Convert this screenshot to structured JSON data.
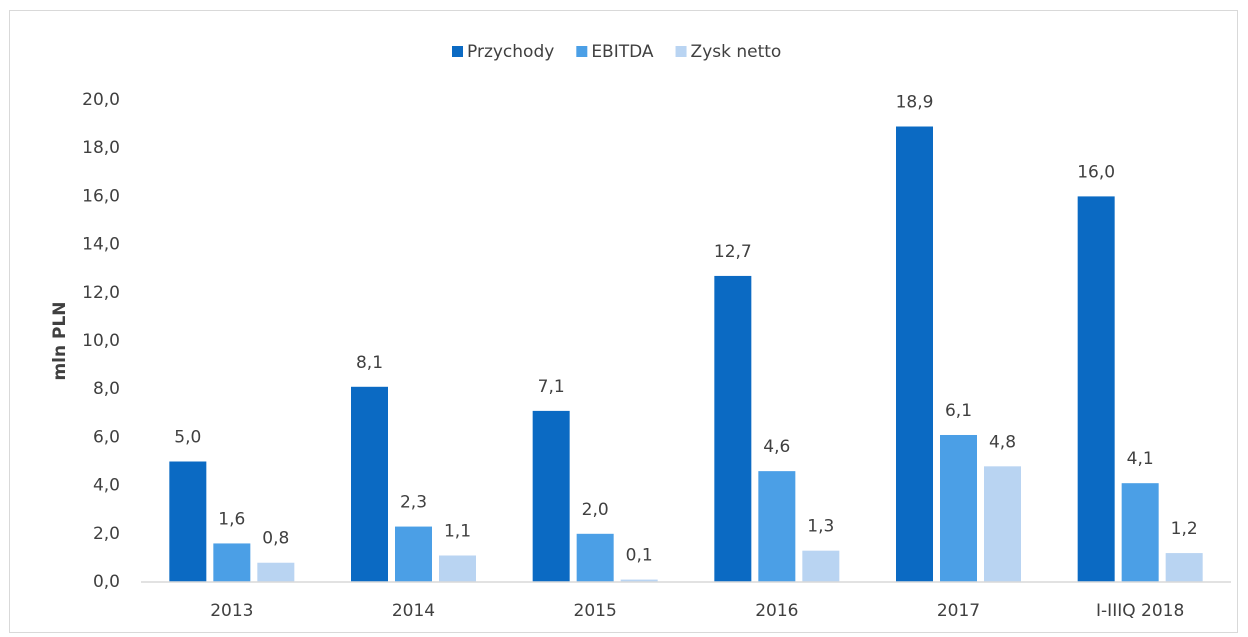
{
  "chart_data": {
    "type": "bar",
    "categories": [
      "2013",
      "2014",
      "2015",
      "2016",
      "2017",
      "I-IIIQ 2018"
    ],
    "series": [
      {
        "name": "Przychody",
        "color": "#0b6ac3",
        "values": [
          5.0,
          8.1,
          7.1,
          12.7,
          18.9,
          16.0
        ],
        "value_labels": [
          "5,0",
          "8,1",
          "7,1",
          "12,7",
          "18,9",
          "16,0"
        ]
      },
      {
        "name": "EBITDA",
        "color": "#4b9fe6",
        "values": [
          1.6,
          2.3,
          2.0,
          4.6,
          6.1,
          4.1
        ],
        "value_labels": [
          "1,6",
          "2,3",
          "2,0",
          "4,6",
          "6,1",
          "4,1"
        ]
      },
      {
        "name": "Zysk netto",
        "color": "#b9d4f2",
        "values": [
          0.8,
          1.1,
          0.1,
          1.3,
          4.8,
          1.2
        ],
        "value_labels": [
          "0,8",
          "1,1",
          "0,1",
          "1,3",
          "4,8",
          "1,2"
        ]
      }
    ],
    "y_label": "mln PLN",
    "ylim": [
      0,
      20
    ],
    "yticks": [
      {
        "value": 0,
        "label": "0,0"
      },
      {
        "value": 2,
        "label": "2,0"
      },
      {
        "value": 4,
        "label": "4,0"
      },
      {
        "value": 6,
        "label": "6,0"
      },
      {
        "value": 8,
        "label": "8,0"
      },
      {
        "value": 10,
        "label": "10,0"
      },
      {
        "value": 12,
        "label": "12,0"
      },
      {
        "value": 14,
        "label": "14,0"
      },
      {
        "value": 16,
        "label": "16,0"
      },
      {
        "value": 18,
        "label": "18,0"
      },
      {
        "value": 20,
        "label": "20,0"
      }
    ],
    "grid": false,
    "legend": "top"
  }
}
